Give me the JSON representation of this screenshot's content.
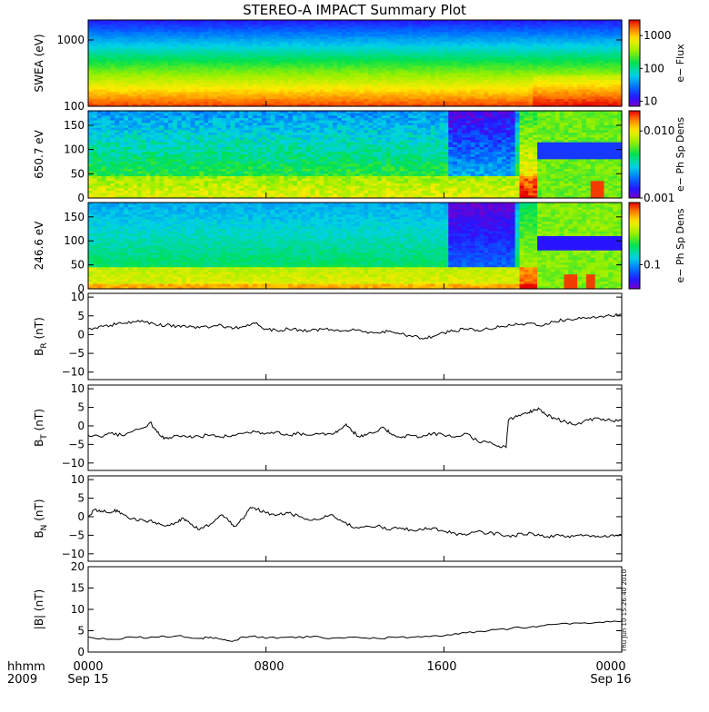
{
  "title": "STEREO-A IMPACT Summary Plot",
  "footer": {
    "left_top": "hhmm",
    "left_bottom": "2009",
    "x_ticks": [
      "0000",
      "0800",
      "1600",
      "0000"
    ],
    "x_dates": [
      "Sep 15",
      "",
      "",
      "Sep 16"
    ],
    "timestamp": "Thu Jun 10 15:26:40 2010"
  },
  "colors": {
    "line": "#000000",
    "frame": "#000000",
    "background": "#ffffff"
  },
  "chart_data": [
    {
      "type": "heatmap",
      "name": "swea",
      "ylabel": "SWEA (eV)",
      "yscale": "log",
      "ylim": [
        100,
        2000
      ],
      "yticks": [
        "1000",
        "100"
      ],
      "ytick_values": [
        1000,
        100
      ],
      "colorbar_label": "e− Flux",
      "colorbar_scale": "log",
      "colorbar_range": [
        7,
        3000
      ],
      "colorbar_ticks": [
        "1000",
        "100",
        "10"
      ],
      "colorbar_tick_values": [
        1000,
        100,
        10
      ],
      "description": "flux decreasing with energy"
    },
    {
      "type": "heatmap",
      "name": "pad650",
      "ylabel": "650.7 eV",
      "ylim": [
        0,
        180
      ],
      "yticks": [
        "150",
        "100",
        "50",
        "0"
      ],
      "ytick_values": [
        150,
        100,
        50,
        0
      ],
      "colorbar_label": "e− Ph Sp Dens",
      "colorbar_scale": "log",
      "colorbar_range": [
        0.001,
        0.02
      ],
      "colorbar_ticks": [
        "0.010",
        "0.001"
      ],
      "colorbar_tick_values": [
        0.01,
        0.001
      ]
    },
    {
      "type": "heatmap",
      "name": "pad246",
      "ylabel": "246.6 eV",
      "ylim": [
        0,
        180
      ],
      "yticks": [
        "150",
        "100",
        "50",
        "0"
      ],
      "ytick_values": [
        150,
        100,
        50,
        0
      ],
      "colorbar_label": "e− Ph Sp Dens",
      "colorbar_scale": "log",
      "colorbar_range": [
        0.05,
        0.6
      ],
      "colorbar_ticks": [
        "0.1"
      ],
      "colorbar_tick_values": [
        0.1
      ]
    },
    {
      "type": "line",
      "name": "br",
      "ylabel_main": "B",
      "ylabel_sub": "R",
      "ylabel_unit": " (nT)",
      "ylim": [
        -12,
        11
      ],
      "yticks": [
        "10",
        "5",
        "0",
        "−5",
        "−10"
      ],
      "ytick_values": [
        10,
        5,
        0,
        -5,
        -10
      ],
      "xlim": [
        0,
        24
      ],
      "points": [
        [
          0,
          1.5
        ],
        [
          0.5,
          2.2
        ],
        [
          1,
          2.5
        ],
        [
          1.5,
          3
        ],
        [
          2,
          3.5
        ],
        [
          2.5,
          3.4
        ],
        [
          3,
          2.8
        ],
        [
          3.5,
          2.5
        ],
        [
          4,
          2.3
        ],
        [
          4.5,
          2.0
        ],
        [
          5,
          1.8
        ],
        [
          5.5,
          2.0
        ],
        [
          6,
          2.5
        ],
        [
          6.5,
          1.5
        ],
        [
          7,
          2.2
        ],
        [
          7.5,
          3.0
        ],
        [
          8,
          1.5
        ],
        [
          8.5,
          1.0
        ],
        [
          9,
          1.5
        ],
        [
          9.5,
          1.3
        ],
        [
          10,
          1.0
        ],
        [
          10.5,
          1.5
        ],
        [
          11,
          1.2
        ],
        [
          11.5,
          1.0
        ],
        [
          12,
          1.2
        ],
        [
          12.5,
          0.8
        ],
        [
          13,
          0.5
        ],
        [
          13.5,
          0.8
        ],
        [
          14,
          0.2
        ],
        [
          14.5,
          -0.3
        ],
        [
          15,
          -1.0
        ],
        [
          15.5,
          -0.5
        ],
        [
          16,
          0.5
        ],
        [
          16.5,
          1.0
        ],
        [
          17,
          1.5
        ],
        [
          17.5,
          1.2
        ],
        [
          18,
          1.5
        ],
        [
          18.5,
          2.0
        ],
        [
          19,
          2.5
        ],
        [
          19.5,
          2.8
        ],
        [
          20,
          3.0
        ],
        [
          20.5,
          2.5
        ],
        [
          21,
          3.5
        ],
        [
          21.5,
          4.0
        ],
        [
          22,
          4.2
        ],
        [
          22.5,
          4.5
        ],
        [
          23,
          4.8
        ],
        [
          23.5,
          5.0
        ],
        [
          24,
          5.5
        ]
      ]
    },
    {
      "type": "line",
      "name": "bt",
      "ylabel_main": "B",
      "ylabel_sub": "T",
      "ylabel_unit": " (nT)",
      "ylim": [
        -12,
        11
      ],
      "yticks": [
        "10",
        "5",
        "0",
        "−5",
        "−10"
      ],
      "ytick_values": [
        10,
        5,
        0,
        -5,
        -10
      ],
      "xlim": [
        0,
        24
      ],
      "points": [
        [
          0,
          -2.5
        ],
        [
          0.5,
          -2.8
        ],
        [
          1,
          -2.0
        ],
        [
          1.5,
          -2.5
        ],
        [
          2,
          -1.5
        ],
        [
          2.5,
          -0.5
        ],
        [
          2.8,
          1.0
        ],
        [
          3,
          -1.0
        ],
        [
          3.3,
          -3.0
        ],
        [
          3.6,
          -3.5
        ],
        [
          4,
          -2.5
        ],
        [
          4.5,
          -3.0
        ],
        [
          5,
          -2.8
        ],
        [
          5.5,
          -2.5
        ],
        [
          6,
          -3.0
        ],
        [
          6.5,
          -2.5
        ],
        [
          7,
          -2.0
        ],
        [
          7.5,
          -1.5
        ],
        [
          8,
          -2.0
        ],
        [
          8.5,
          -1.5
        ],
        [
          9,
          -2.5
        ],
        [
          9.5,
          -2.0
        ],
        [
          10,
          -2.5
        ],
        [
          10.5,
          -2.0
        ],
        [
          11,
          -2.3
        ],
        [
          11.3,
          -1.0
        ],
        [
          11.6,
          0.5
        ],
        [
          11.9,
          -1.5
        ],
        [
          12.2,
          -3.0
        ],
        [
          12.5,
          -2.5
        ],
        [
          13,
          -1.5
        ],
        [
          13.3,
          -0.5
        ],
        [
          13.6,
          -2.0
        ],
        [
          14,
          -3.0
        ],
        [
          14.5,
          -2.5
        ],
        [
          15,
          -3.0
        ],
        [
          15.5,
          -2.0
        ],
        [
          16,
          -2.5
        ],
        [
          16.5,
          -3.0
        ],
        [
          17,
          -2.0
        ],
        [
          17.5,
          -4.0
        ],
        [
          18,
          -4.5
        ],
        [
          18.4,
          -5.5
        ],
        [
          18.8,
          -5.8
        ],
        [
          18.9,
          1.5
        ],
        [
          19.3,
          2.5
        ],
        [
          19.7,
          3.5
        ],
        [
          20,
          4.0
        ],
        [
          20.3,
          4.5
        ],
        [
          20.6,
          3.0
        ],
        [
          21,
          2.0
        ],
        [
          21.5,
          1.0
        ],
        [
          22,
          0.5
        ],
        [
          22.5,
          1.5
        ],
        [
          23,
          2.0
        ],
        [
          23.5,
          1.5
        ],
        [
          24,
          1.5
        ]
      ]
    },
    {
      "type": "line",
      "name": "bn",
      "ylabel_main": "B",
      "ylabel_sub": "N",
      "ylabel_unit": " (nT)",
      "ylim": [
        -12,
        11
      ],
      "yticks": [
        "10",
        "5",
        "0",
        "−5",
        "−10"
      ],
      "ytick_values": [
        10,
        5,
        0,
        -5,
        -10
      ],
      "xlim": [
        0,
        24
      ],
      "points": [
        [
          0,
          0
        ],
        [
          0.3,
          2.0
        ],
        [
          0.6,
          1.5
        ],
        [
          1,
          1.0
        ],
        [
          1.3,
          1.8
        ],
        [
          1.6,
          0.5
        ],
        [
          2,
          -0.5
        ],
        [
          2.5,
          -1.0
        ],
        [
          3,
          -1.5
        ],
        [
          3.5,
          -2.5
        ],
        [
          4,
          -1.5
        ],
        [
          4.3,
          -0.5
        ],
        [
          4.6,
          -2.0
        ],
        [
          5,
          -3.5
        ],
        [
          5.5,
          -2.0
        ],
        [
          6,
          0.5
        ],
        [
          6.3,
          -1.0
        ],
        [
          6.6,
          -2.5
        ],
        [
          7,
          -0.5
        ],
        [
          7.3,
          2.5
        ],
        [
          7.6,
          2.0
        ],
        [
          8,
          1.0
        ],
        [
          8.5,
          0.5
        ],
        [
          9,
          1.0
        ],
        [
          9.5,
          0
        ],
        [
          10,
          -1.0
        ],
        [
          10.5,
          -0.5
        ],
        [
          11,
          0.5
        ],
        [
          11.5,
          -1.5
        ],
        [
          12,
          -3.0
        ],
        [
          12.5,
          -2.5
        ],
        [
          13,
          -2.5
        ],
        [
          13.5,
          -3.5
        ],
        [
          14,
          -3.0
        ],
        [
          14.5,
          -3.5
        ],
        [
          15,
          -3.5
        ],
        [
          15.5,
          -3.0
        ],
        [
          16,
          -4.0
        ],
        [
          16.5,
          -4.5
        ],
        [
          17,
          -5.0
        ],
        [
          17.5,
          -4.0
        ],
        [
          18,
          -4.5
        ],
        [
          18.5,
          -4.5
        ],
        [
          19,
          -5.5
        ],
        [
          19.5,
          -4.5
        ],
        [
          20,
          -4.5
        ],
        [
          20.5,
          -5.5
        ],
        [
          21,
          -5.0
        ],
        [
          21.5,
          -5.5
        ],
        [
          22,
          -5.0
        ],
        [
          22.5,
          -5.0
        ],
        [
          23,
          -5.5
        ],
        [
          23.5,
          -5.0
        ],
        [
          24,
          -5.0
        ]
      ]
    },
    {
      "type": "line",
      "name": "bmag",
      "ylabel_main": "|B| (nT)",
      "ylim": [
        0,
        20
      ],
      "yticks": [
        "20",
        "15",
        "10",
        "5",
        "0"
      ],
      "ytick_values": [
        20,
        15,
        10,
        5,
        0
      ],
      "xlim": [
        0,
        24
      ],
      "points": [
        [
          0,
          3.5
        ],
        [
          1,
          3.0
        ],
        [
          2,
          3.5
        ],
        [
          3,
          3.5
        ],
        [
          4,
          3.8
        ],
        [
          5,
          3.2
        ],
        [
          5.5,
          3.5
        ],
        [
          6,
          3.0
        ],
        [
          6.5,
          2.5
        ],
        [
          7,
          3.5
        ],
        [
          7.5,
          3.8
        ],
        [
          8,
          3.2
        ],
        [
          9,
          3.5
        ],
        [
          10,
          3.5
        ],
        [
          11,
          3.3
        ],
        [
          12,
          3.5
        ],
        [
          13,
          3.2
        ],
        [
          14,
          3.5
        ],
        [
          15,
          3.5
        ],
        [
          16,
          3.8
        ],
        [
          17,
          4.5
        ],
        [
          18,
          5.0
        ],
        [
          19,
          5.5
        ],
        [
          20,
          6.0
        ],
        [
          21,
          6.5
        ],
        [
          22,
          6.8
        ],
        [
          23,
          7.0
        ],
        [
          24,
          7.2
        ]
      ]
    }
  ]
}
